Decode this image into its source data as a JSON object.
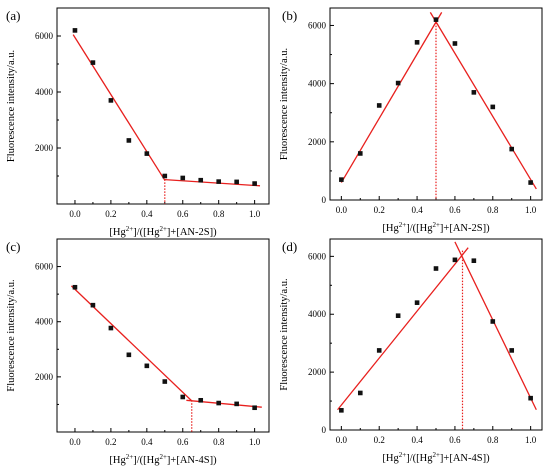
{
  "chart_data": [
    {
      "type": "scatter",
      "panel_label": "(a)",
      "xlabel": "[Hg2+]/([Hg2+]+[AN-2S])",
      "xlabel_parts": {
        "pre": "[Hg",
        "sup": "2+",
        "mid": "]/([Hg",
        "sup2": "2+",
        "post": "]+[AN-2S])"
      },
      "ylabel": "Fluorescence intensity/a.u.",
      "xlim": [
        -0.1,
        1.08
      ],
      "ylim": [
        0,
        7000
      ],
      "xticks": [
        0.0,
        0.2,
        0.4,
        0.6,
        0.8,
        1.0
      ],
      "xtick_labels": [
        "0.0",
        "0.2",
        "0.4",
        "0.6",
        "0.8",
        "1.0"
      ],
      "yticks": [
        2000,
        4000,
        6000
      ],
      "ytick_labels": [
        "2000",
        "4000",
        "6000"
      ],
      "series": [
        {
          "x": [
            0.0,
            0.1,
            0.2,
            0.3,
            0.4,
            0.5,
            0.6,
            0.7,
            0.8,
            0.9,
            1.0
          ],
          "y": [
            6200,
            5050,
            3700,
            2270,
            1800,
            1000,
            930,
            850,
            800,
            790,
            730
          ]
        }
      ],
      "fit_lines": [
        {
          "x": [
            -0.01,
            0.5
          ],
          "y": [
            6050,
            850
          ]
        },
        {
          "x": [
            0.5,
            1.03
          ],
          "y": [
            870,
            650
          ]
        }
      ],
      "vline": {
        "x": 0.5,
        "y_top": 880
      }
    },
    {
      "type": "scatter",
      "panel_label": "(b)",
      "xlabel": "[Hg2+]/([Hg2+]+[AN-2S])",
      "xlabel_parts": {
        "pre": "[Hg",
        "sup": "2+",
        "mid": "]/([Hg",
        "sup2": "2+",
        "post": "]+[AN-2S])"
      },
      "ylabel": "Fluorescence intensity/a.u.",
      "xlim": [
        -0.06,
        1.06
      ],
      "ylim": [
        0,
        6600
      ],
      "xticks": [
        0.0,
        0.2,
        0.4,
        0.6,
        0.8,
        1.0
      ],
      "xtick_labels": [
        "0.0",
        "0.2",
        "0.4",
        "0.6",
        "0.8",
        "1.0"
      ],
      "yticks": [
        0,
        2000,
        4000,
        6000
      ],
      "ytick_labels": [
        "0",
        "2000",
        "4000",
        "6000"
      ],
      "series": [
        {
          "x": [
            0.0,
            0.1,
            0.2,
            0.3,
            0.4,
            0.5,
            0.6,
            0.7,
            0.8,
            0.9,
            1.0
          ],
          "y": [
            700,
            1600,
            3250,
            4020,
            5420,
            6200,
            5380,
            3700,
            3200,
            1750,
            600
          ]
        }
      ],
      "fit_lines": [
        {
          "x": [
            0.0,
            0.53
          ],
          "y": [
            600,
            6450
          ]
        },
        {
          "x": [
            0.47,
            1.03
          ],
          "y": [
            6450,
            380
          ]
        }
      ],
      "vline": {
        "x": 0.5,
        "y_top": 6200
      }
    },
    {
      "type": "scatter",
      "panel_label": "(c)",
      "xlabel": "[Hg2+]/([Hg2+]+[AN-4S])",
      "xlabel_parts": {
        "pre": "[Hg",
        "sup": "2+",
        "mid": "]/([Hg",
        "sup2": "2+",
        "post": "]+[AN-4S])"
      },
      "ylabel": "Fluorescence intensity/a.u.",
      "xlim": [
        -0.1,
        1.08
      ],
      "ylim": [
        0,
        7000
      ],
      "xticks": [
        0.0,
        0.2,
        0.4,
        0.6,
        0.8,
        1.0
      ],
      "xtick_labels": [
        "0.0",
        "0.2",
        "0.4",
        "0.6",
        "0.8",
        "1.0"
      ],
      "yticks": [
        2000,
        4000,
        6000
      ],
      "ytick_labels": [
        "2000",
        "4000",
        "6000"
      ],
      "series": [
        {
          "x": [
            0.0,
            0.1,
            0.2,
            0.3,
            0.4,
            0.5,
            0.6,
            0.7,
            0.8,
            0.9,
            1.0
          ],
          "y": [
            5250,
            4600,
            3770,
            2800,
            2400,
            1830,
            1270,
            1150,
            1050,
            1020,
            880
          ]
        }
      ],
      "fit_lines": [
        {
          "x": [
            -0.02,
            0.65
          ],
          "y": [
            5300,
            1130
          ]
        },
        {
          "x": [
            0.62,
            1.04
          ],
          "y": [
            1150,
            900
          ]
        }
      ],
      "vline": {
        "x": 0.65,
        "y_top": 1150
      }
    },
    {
      "type": "scatter",
      "panel_label": "(d)",
      "xlabel": "[Hg2+]/([Hg2+]+[AN-4S])",
      "xlabel_parts": {
        "pre": "[Hg",
        "sup": "2+",
        "mid": "]/([Hg",
        "sup2": "2+",
        "post": "]+[AN-4S])"
      },
      "ylabel": "Fluorescence intensity/a.u.",
      "xlim": [
        -0.06,
        1.06
      ],
      "ylim": [
        0,
        6600
      ],
      "xticks": [
        0.0,
        0.2,
        0.4,
        0.6,
        0.8,
        1.0
      ],
      "xtick_labels": [
        "0.0",
        "0.2",
        "0.4",
        "0.6",
        "0.8",
        "1.0"
      ],
      "yticks": [
        0,
        2000,
        4000,
        6000
      ],
      "ytick_labels": [
        "0",
        "2000",
        "4000",
        "6000"
      ],
      "series": [
        {
          "x": [
            0.0,
            0.1,
            0.2,
            0.3,
            0.4,
            0.5,
            0.6,
            0.7,
            0.8,
            0.9,
            1.0
          ],
          "y": [
            680,
            1280,
            2750,
            3950,
            4400,
            5580,
            5880,
            5850,
            3750,
            2750,
            1100
          ]
        }
      ],
      "fit_lines": [
        {
          "x": [
            -0.02,
            0.67
          ],
          "y": [
            700,
            6300
          ]
        },
        {
          "x": [
            0.6,
            1.03
          ],
          "y": [
            6500,
            700
          ]
        }
      ],
      "vline": {
        "x": 0.64,
        "y_top": 6200
      }
    }
  ]
}
